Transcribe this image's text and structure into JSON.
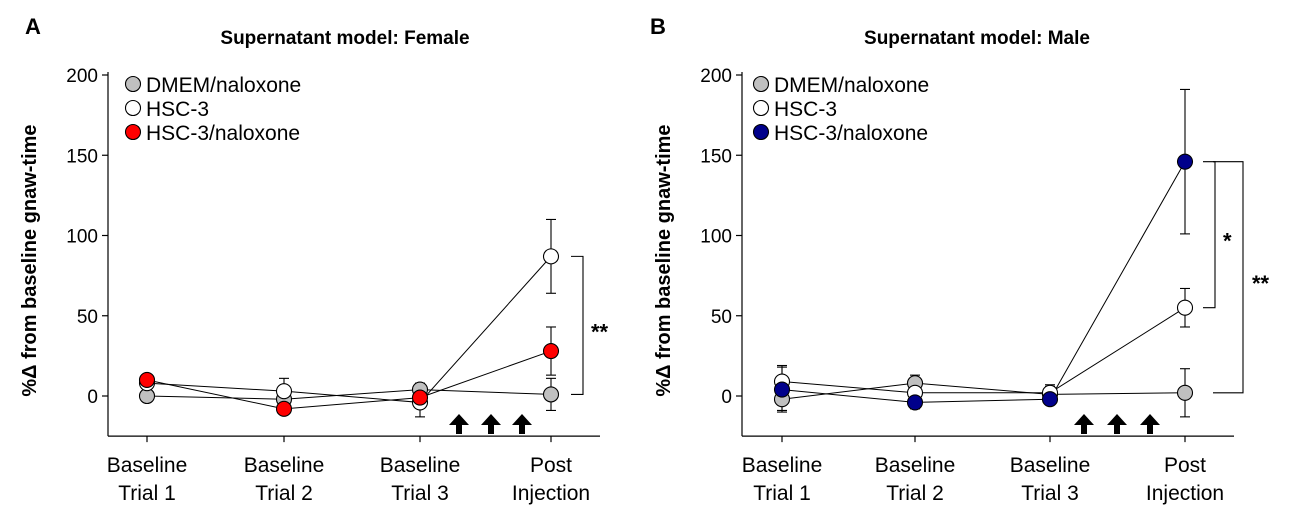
{
  "chart_data": [
    {
      "type": "line",
      "panel_label": "A",
      "title": "Supernatant model: Female",
      "ylabel": "%Δ from baseline gnaw-time",
      "xlabel": "",
      "ylim": [
        -25,
        200
      ],
      "yticks": [
        0,
        50,
        100,
        150,
        200
      ],
      "categories": [
        [
          "Baseline",
          "Trial 1"
        ],
        [
          "Baseline",
          "Trial 2"
        ],
        [
          "Baseline",
          "Trial 3"
        ],
        [
          "Post",
          "Injection"
        ]
      ],
      "series": [
        {
          "name": "DMEM/naloxone",
          "fill": "#c0c0c0",
          "values": [
            0,
            -2,
            4,
            1
          ],
          "errors": [
            0,
            0,
            4,
            10
          ]
        },
        {
          "name": "HSC-3",
          "fill": "#ffffff",
          "values": [
            8,
            3,
            -4,
            87
          ],
          "errors": [
            0,
            8,
            9,
            23
          ]
        },
        {
          "name": "HSC-3/naloxone",
          "fill": "#ff0000",
          "values": [
            10,
            -8,
            -1,
            28
          ],
          "errors": [
            0,
            0,
            0,
            15
          ]
        }
      ],
      "annotations": [
        {
          "text": "**",
          "between": [
            "HSC-3",
            "DMEM/naloxone"
          ],
          "category": 3
        }
      ],
      "arrows": {
        "count": 3,
        "between_categories": [
          2,
          3
        ]
      }
    },
    {
      "type": "line",
      "panel_label": "B",
      "title": "Supernatant model: Male",
      "ylabel": "%Δ from baseline gnaw-time",
      "xlabel": "",
      "ylim": [
        -25,
        200
      ],
      "yticks": [
        0,
        50,
        100,
        150,
        200
      ],
      "categories": [
        [
          "Baseline",
          "Trial 1"
        ],
        [
          "Baseline",
          "Trial 2"
        ],
        [
          "Baseline",
          "Trial 3"
        ],
        [
          "Post",
          "Injection"
        ]
      ],
      "series": [
        {
          "name": "DMEM/naloxone",
          "fill": "#c0c0c0",
          "values": [
            -2,
            8,
            1,
            2
          ],
          "errors": [
            7,
            5,
            6,
            15
          ]
        },
        {
          "name": "HSC-3",
          "fill": "#ffffff",
          "values": [
            9,
            2,
            2,
            55
          ],
          "errors": [
            10,
            4,
            4,
            12
          ]
        },
        {
          "name": "HSC-3/naloxone",
          "fill": "#00008b",
          "values": [
            4,
            -4,
            -2,
            146
          ],
          "errors": [
            14,
            4,
            0,
            45
          ]
        }
      ],
      "annotations": [
        {
          "text": "*",
          "between": [
            "HSC-3/naloxone",
            "HSC-3"
          ],
          "category": 3
        },
        {
          "text": "**",
          "between": [
            "HSC-3/naloxone",
            "DMEM/naloxone"
          ],
          "category": 3
        }
      ],
      "arrows": {
        "count": 3,
        "between_categories": [
          2,
          3
        ]
      }
    }
  ]
}
